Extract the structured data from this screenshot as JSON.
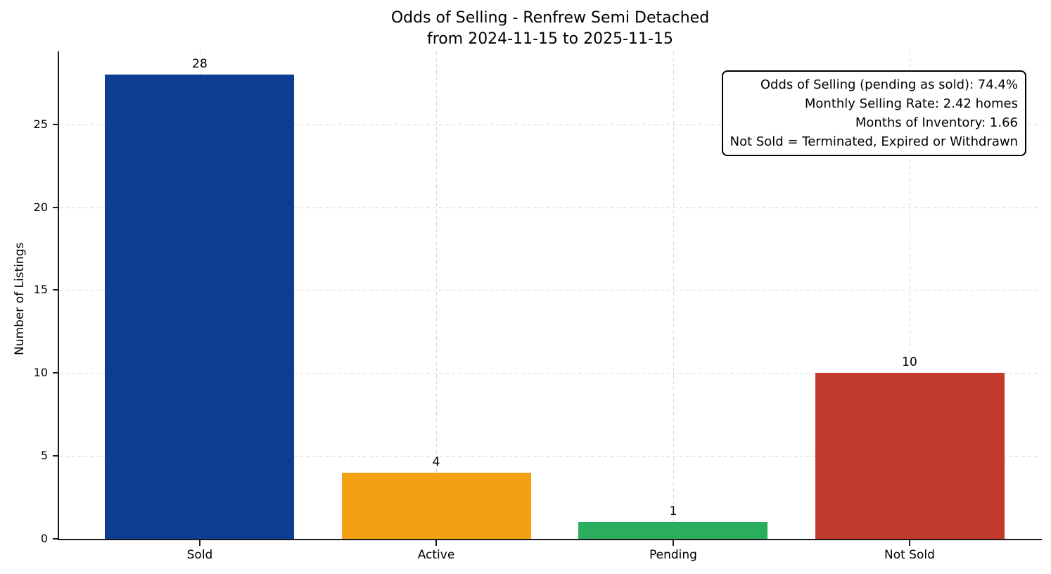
{
  "chart_data": {
    "type": "bar",
    "title_lines": [
      "Odds of Selling - Renfrew Semi Detached",
      "from 2024-11-15 to 2025-11-15"
    ],
    "categories": [
      "Sold",
      "Active",
      "Pending",
      "Not Sold"
    ],
    "values": [
      28,
      4,
      1,
      10
    ],
    "value_labels": [
      "28",
      "4",
      "1",
      "10"
    ],
    "bar_colors": [
      "#0d3d91",
      "#f4a015",
      "#2bad5e",
      "#c33b2c"
    ],
    "xlabel": "",
    "ylabel": "Number of Listings",
    "ylim": [
      0,
      29.4
    ],
    "yticks": [
      0,
      5,
      10,
      15,
      20,
      25
    ],
    "grid": "dashed light-gray, horizontal and vertical",
    "legend": "none",
    "axis_color": "#1a1a1a",
    "grid_color": "#d8d8d8",
    "text_color": "#000000",
    "background_color": "#ffffff",
    "annotation": {
      "position": "top-right",
      "lines": [
        "Odds of Selling (pending as sold): 74.4%",
        "Monthly Selling Rate: 2.42 homes",
        "Months of Inventory: 1.66",
        "Not Sold = Terminated, Expired or Withdrawn"
      ]
    }
  }
}
